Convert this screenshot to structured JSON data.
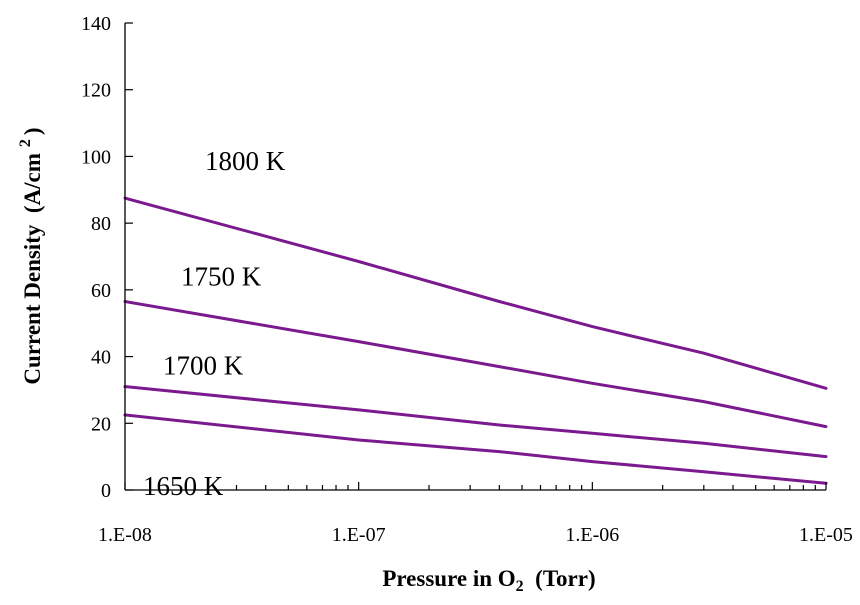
{
  "chart_data": {
    "type": "line",
    "x_scale": "log",
    "xlim": [
      "1.E-08",
      "1.E-05"
    ],
    "ylim": [
      0,
      140
    ],
    "grid": false,
    "legend": "none",
    "xlabel": {
      "main": "Pressure in O",
      "sub": "2",
      "tail": "  (Torr)"
    },
    "ylabel": {
      "main": "Current Density  (A/cm",
      "sup": "2",
      "tail": ")"
    },
    "x_ticks": [
      {
        "value": 1e-08,
        "label": "1.E-08"
      },
      {
        "value": 1e-07,
        "label": "1.E-07"
      },
      {
        "value": 1e-06,
        "label": "1.E-06"
      },
      {
        "value": 1e-05,
        "label": "1.E-05"
      }
    ],
    "y_ticks": [
      0,
      20,
      40,
      60,
      80,
      100,
      120,
      140
    ],
    "series_color": "#7b1a8e",
    "series": [
      {
        "name": "1800 K",
        "x": [
          1e-08,
          1e-07,
          4e-07,
          1e-06,
          3e-06,
          1e-05
        ],
        "values": [
          87.5,
          68.5,
          56.5,
          49,
          41,
          30.5
        ]
      },
      {
        "name": "1750 K",
        "x": [
          1e-08,
          1e-07,
          4e-07,
          1e-06,
          3e-06,
          1e-05
        ],
        "values": [
          56.5,
          44.5,
          37,
          32,
          26.5,
          19
        ]
      },
      {
        "name": "1700 K",
        "x": [
          1e-08,
          1e-07,
          4e-07,
          1e-06,
          3e-06,
          1e-05
        ],
        "values": [
          31,
          24,
          19.5,
          17,
          14,
          10
        ]
      },
      {
        "name": "1650 K",
        "x": [
          1e-08,
          1e-07,
          4e-07,
          1e-06,
          3e-06,
          1e-05
        ],
        "values": [
          22.5,
          15,
          11.5,
          8.5,
          5.5,
          2
        ]
      }
    ]
  }
}
